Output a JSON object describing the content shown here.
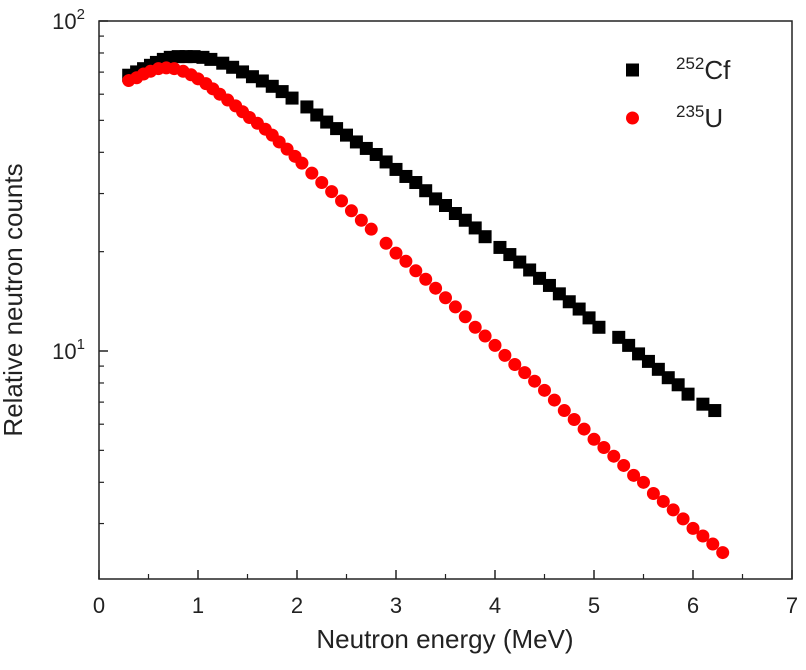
{
  "chart_data": {
    "type": "scatter",
    "xlabel": "Neutron energy (MeV)",
    "ylabel": "Relative neutron counts",
    "xlim": [
      0,
      7
    ],
    "ylim": [
      2,
      100
    ],
    "yscale": "log",
    "grid": false,
    "legend_position": "top-right",
    "x_ticks": [
      "0",
      "1",
      "2",
      "3",
      "4",
      "5",
      "6",
      "7"
    ],
    "y_ticks": [
      {
        "base": "10",
        "exp": "1",
        "value": 10
      },
      {
        "base": "10",
        "exp": "2",
        "value": 100
      }
    ],
    "series": [
      {
        "name": "Cf",
        "name_sup": "252",
        "marker": "square",
        "color": "#000000",
        "x": [
          0.3,
          0.38,
          0.45,
          0.52,
          0.58,
          0.65,
          0.72,
          0.8,
          0.88,
          0.96,
          1.05,
          1.13,
          1.25,
          1.35,
          1.45,
          1.55,
          1.65,
          1.75,
          1.85,
          1.95,
          2.1,
          2.2,
          2.3,
          2.4,
          2.5,
          2.6,
          2.7,
          2.8,
          2.9,
          3.0,
          3.1,
          3.2,
          3.3,
          3.4,
          3.5,
          3.6,
          3.7,
          3.8,
          3.9,
          4.05,
          4.15,
          4.25,
          4.35,
          4.45,
          4.55,
          4.65,
          4.75,
          4.85,
          4.95,
          5.05,
          5.25,
          5.35,
          5.45,
          5.55,
          5.65,
          5.75,
          5.85,
          5.95,
          6.1,
          6.22
        ],
        "y": [
          68.5,
          70.1,
          71.7,
          73.4,
          74.9,
          76.5,
          77.6,
          78.0,
          78.0,
          78.0,
          77.6,
          76.5,
          74.5,
          72.4,
          70.1,
          67.8,
          65.8,
          63.4,
          61.1,
          58.4,
          54.9,
          51.9,
          49.4,
          47.2,
          45.1,
          43.0,
          41.1,
          39.4,
          37.4,
          35.5,
          33.8,
          32.4,
          30.6,
          28.9,
          27.6,
          26.1,
          24.9,
          23.6,
          22.2,
          20.6,
          19.6,
          18.6,
          17.6,
          16.6,
          15.8,
          14.9,
          14.1,
          13.4,
          12.6,
          11.8,
          11.0,
          10.4,
          9.8,
          9.3,
          8.8,
          8.3,
          7.9,
          7.4,
          6.9,
          6.6
        ]
      },
      {
        "name": "U",
        "name_sup": "235",
        "marker": "circle",
        "color": "#ff0000",
        "x": [
          0.3,
          0.38,
          0.45,
          0.52,
          0.6,
          0.68,
          0.76,
          0.85,
          0.93,
          1.0,
          1.08,
          1.15,
          1.22,
          1.3,
          1.38,
          1.45,
          1.52,
          1.6,
          1.68,
          1.75,
          1.82,
          1.9,
          1.98,
          2.05,
          2.15,
          2.25,
          2.35,
          2.45,
          2.55,
          2.65,
          2.75,
          2.9,
          3.0,
          3.1,
          3.2,
          3.3,
          3.4,
          3.5,
          3.6,
          3.7,
          3.8,
          3.9,
          4.0,
          4.1,
          4.2,
          4.3,
          4.4,
          4.5,
          4.6,
          4.7,
          4.8,
          4.9,
          5.0,
          5.1,
          5.2,
          5.3,
          5.4,
          5.5,
          5.6,
          5.7,
          5.8,
          5.9,
          6.0,
          6.1,
          6.2,
          6.3
        ],
        "y": [
          66.0,
          67.3,
          69.1,
          70.4,
          71.7,
          72.1,
          71.7,
          70.4,
          68.7,
          66.8,
          64.6,
          62.3,
          60.0,
          57.6,
          55.3,
          53.1,
          51.0,
          49.0,
          47.0,
          45.1,
          43.0,
          40.9,
          38.9,
          37.1,
          34.6,
          32.4,
          30.4,
          28.5,
          26.6,
          24.9,
          23.4,
          21.2,
          19.8,
          18.7,
          17.5,
          16.5,
          15.5,
          14.5,
          13.6,
          12.7,
          11.8,
          11.1,
          10.4,
          9.7,
          9.1,
          8.6,
          8.1,
          7.6,
          7.1,
          6.6,
          6.2,
          5.8,
          5.4,
          5.1,
          4.8,
          4.5,
          4.2,
          4.0,
          3.7,
          3.5,
          3.3,
          3.1,
          2.9,
          2.75,
          2.6,
          2.45
        ]
      }
    ]
  }
}
